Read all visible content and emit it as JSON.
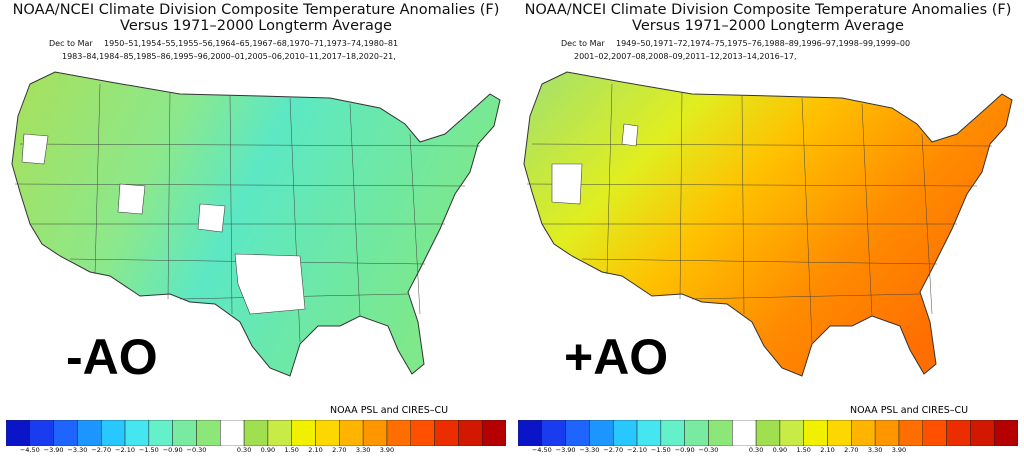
{
  "panels": [
    {
      "id": "neg",
      "title_line1": "NOAA/NCEI Climate Division Composite Temperature Anomalies (F)",
      "title_line2": "Versus 1971–2000 Longterm Average",
      "period": "Dec to Mar",
      "years_line1": "1950–51,1954–55,1955–56,1964–65,1967–68,1970–71,1973–74,1980–81",
      "years_line2": "1983–84,1984–85,1985–86,1995–96,2000–01,2005–06,2010–11,2017–18,2020–21,",
      "big_label": "-AO",
      "credit": "NOAA PSL and CIRES–CU",
      "map_fill": "#a6e05a"
    },
    {
      "id": "pos",
      "title_line1": "NOAA/NCEI Climate Division Composite Temperature Anomalies (F)",
      "title_line2": "Versus 1971–2000 Longterm Average",
      "period": "Dec to Mar",
      "years_line1": "1949–50,1971–72,1974–75,1975–76,1988–89,1996–97,1998–99,1999–00",
      "years_line2": "2001–02,2007–08,2008–09,2011–12,2013–14,2016–17,",
      "big_label": "+AO",
      "credit": "NOAA PSL and CIRES–CU",
      "map_fill": "#f7b500"
    }
  ],
  "colorbar": {
    "colors": [
      "#0a14c8",
      "#1a3cf0",
      "#1e64ff",
      "#1e96ff",
      "#28c8ff",
      "#46e6f0",
      "#64f0c8",
      "#78eba0",
      "#8ce678",
      "#ffffff",
      "#a0e050",
      "#c8eb46",
      "#f0f000",
      "#ffd700",
      "#ffb400",
      "#ff9600",
      "#ff6e00",
      "#ff5000",
      "#eb2d00",
      "#d21900",
      "#b40000"
    ],
    "ticks": [
      "−4.50",
      "−3.90",
      "−3.30",
      "−2.70",
      "−2.10",
      "−1.50",
      "−0.90",
      "−0.30",
      "0.30",
      "0.90",
      "1.50",
      "2.10",
      "2.70",
      "3.30",
      "3.90"
    ]
  }
}
